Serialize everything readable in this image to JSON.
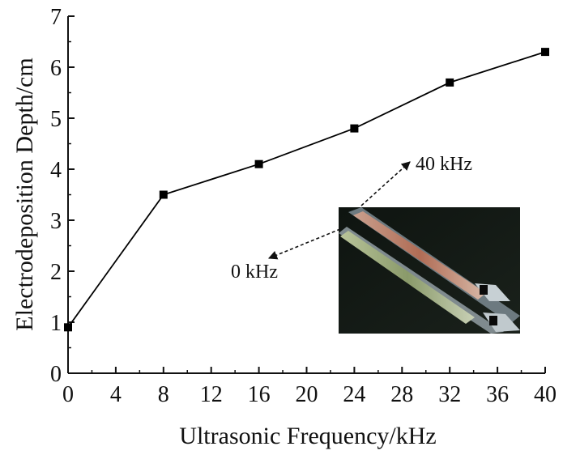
{
  "chart_data": {
    "type": "line",
    "xlabel": "Ultrasonic Frequency/kHz",
    "ylabel": "Electrodeposition Depth/cm",
    "xlim": [
      0,
      40
    ],
    "ylim": [
      0,
      7
    ],
    "xticks": [
      "0",
      "4",
      "8",
      "12",
      "16",
      "20",
      "24",
      "28",
      "32",
      "36",
      "40"
    ],
    "yticks": [
      "0",
      "1",
      "2",
      "3",
      "4",
      "5",
      "6",
      "7"
    ],
    "series": [
      {
        "x": [
          0,
          8,
          16,
          24,
          32,
          40
        ],
        "y": [
          0.9,
          3.5,
          4.1,
          4.8,
          5.7,
          6.3
        ],
        "marker": "square",
        "color": "#000000"
      }
    ],
    "annotations": [
      {
        "text": "40 kHz"
      },
      {
        "text": "0 kHz"
      }
    ],
    "grid": false,
    "inset": "photo of two electrodeposited wires"
  }
}
